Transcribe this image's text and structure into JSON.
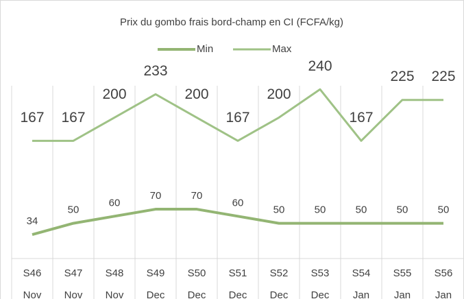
{
  "chart_data": {
    "type": "line",
    "title": "Prix du gombo frais bord-champ en CI (FCFA/kg)",
    "categories": [
      [
        "S46",
        "Nov"
      ],
      [
        "S47",
        "Nov"
      ],
      [
        "S48",
        "Nov"
      ],
      [
        "S49",
        "Dec"
      ],
      [
        "S50",
        "Dec"
      ],
      [
        "S51",
        "Dec"
      ],
      [
        "S52",
        "Dec"
      ],
      [
        "S53",
        "Dec"
      ],
      [
        "S54",
        "Jan"
      ],
      [
        "S55",
        "Jan"
      ],
      [
        "S56",
        "Jan"
      ]
    ],
    "series": [
      {
        "name": "Min",
        "color": "#93b573",
        "values": [
          34,
          50,
          60,
          70,
          70,
          60,
          50,
          50,
          50,
          50,
          50
        ]
      },
      {
        "name": "Max",
        "color": "#9fc286",
        "values": [
          167,
          167,
          200,
          233,
          200,
          167,
          200,
          240,
          167,
          225,
          225
        ]
      }
    ],
    "ylim": [
      0,
      250
    ]
  }
}
